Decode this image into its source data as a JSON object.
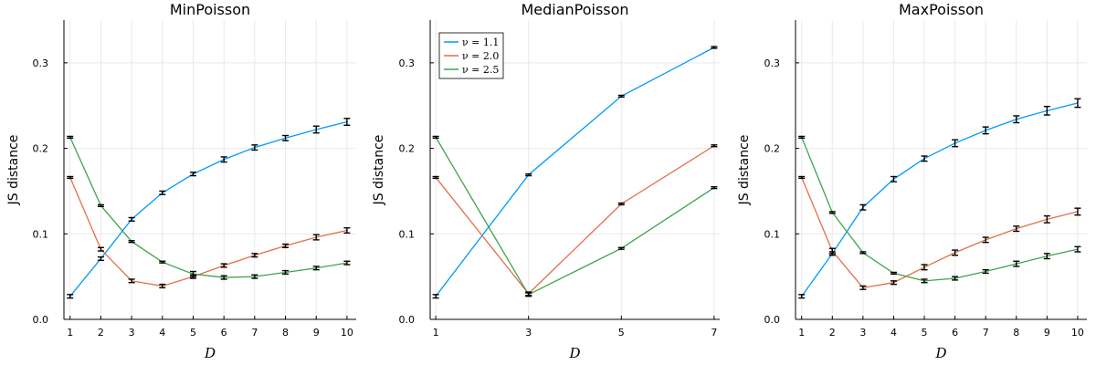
{
  "chart_data": [
    {
      "type": "line",
      "title": "MinPoisson",
      "xlabel": "D",
      "ylabel": "JS distance",
      "x": [
        1,
        2,
        3,
        4,
        5,
        6,
        7,
        8,
        9,
        10
      ],
      "xticks": [
        "1",
        "2",
        "3",
        "4",
        "5",
        "6",
        "7",
        "8",
        "9",
        "10"
      ],
      "xlim": [
        0.8,
        10.3
      ],
      "yticks": [
        "0.0",
        "0.1",
        "0.2",
        "0.3"
      ],
      "ylim": [
        0,
        0.35
      ],
      "grid": true,
      "legend": false,
      "series": [
        {
          "name": "ν = 1.1",
          "color": "#009AFA",
          "values": [
            0.027,
            0.071,
            0.117,
            0.148,
            0.17,
            0.187,
            0.201,
            0.212,
            0.222,
            0.231
          ],
          "errors": [
            0.002,
            0.002,
            0.002,
            0.002,
            0.002,
            0.003,
            0.003,
            0.003,
            0.004,
            0.004
          ]
        },
        {
          "name": "ν = 2.0",
          "color": "#E26F46",
          "values": [
            0.166,
            0.082,
            0.045,
            0.039,
            0.05,
            0.063,
            0.075,
            0.086,
            0.096,
            0.104
          ],
          "errors": [
            0.001,
            0.002,
            0.002,
            0.002,
            0.002,
            0.002,
            0.002,
            0.002,
            0.003,
            0.003
          ]
        },
        {
          "name": "ν = 2.5",
          "color": "#3DA44D",
          "values": [
            0.213,
            0.133,
            0.091,
            0.067,
            0.053,
            0.049,
            0.05,
            0.055,
            0.06,
            0.066
          ],
          "errors": [
            0.001,
            0.001,
            0.001,
            0.001,
            0.003,
            0.002,
            0.002,
            0.002,
            0.002,
            0.002
          ]
        }
      ]
    },
    {
      "type": "line",
      "title": "MedianPoisson",
      "xlabel": "D",
      "ylabel": "JS distance",
      "x": [
        1,
        3,
        5,
        7
      ],
      "xticks": [
        "1",
        "3",
        "5",
        "7"
      ],
      "xlim": [
        0.88,
        7.12
      ],
      "yticks": [
        "0.0",
        "0.1",
        "0.2",
        "0.3"
      ],
      "ylim": [
        0,
        0.35
      ],
      "grid": true,
      "legend": true,
      "legend_position": "top-left",
      "series": [
        {
          "name": "ν = 1.1",
          "color": "#009AFA",
          "values": [
            0.027,
            0.169,
            0.261,
            0.318
          ],
          "errors": [
            0.002,
            0.001,
            0.001,
            0.001
          ]
        },
        {
          "name": "ν = 2.0",
          "color": "#E26F46",
          "values": [
            0.166,
            0.03,
            0.135,
            0.203
          ],
          "errors": [
            0.001,
            0.002,
            0.001,
            0.001
          ]
        },
        {
          "name": "ν = 2.5",
          "color": "#3DA44D",
          "values": [
            0.213,
            0.029,
            0.083,
            0.154
          ],
          "errors": [
            0.001,
            0.002,
            0.001,
            0.001
          ]
        }
      ]
    },
    {
      "type": "line",
      "title": "MaxPoisson",
      "xlabel": "D",
      "ylabel": "JS distance",
      "x": [
        1,
        2,
        3,
        4,
        5,
        6,
        7,
        8,
        9,
        10
      ],
      "xticks": [
        "1",
        "2",
        "3",
        "4",
        "5",
        "6",
        "7",
        "8",
        "9",
        "10"
      ],
      "xlim": [
        0.8,
        10.3
      ],
      "yticks": [
        "0.0",
        "0.1",
        "0.2",
        "0.3"
      ],
      "ylim": [
        0,
        0.35
      ],
      "grid": true,
      "legend": false,
      "series": [
        {
          "name": "ν = 1.1",
          "color": "#009AFA",
          "values": [
            0.027,
            0.077,
            0.131,
            0.164,
            0.188,
            0.206,
            0.221,
            0.234,
            0.244,
            0.253
          ],
          "errors": [
            0.002,
            0.002,
            0.003,
            0.003,
            0.003,
            0.004,
            0.004,
            0.004,
            0.005,
            0.005
          ]
        },
        {
          "name": "ν = 2.0",
          "color": "#E26F46",
          "values": [
            0.166,
            0.08,
            0.037,
            0.043,
            0.061,
            0.078,
            0.093,
            0.106,
            0.117,
            0.126
          ],
          "errors": [
            0.001,
            0.003,
            0.002,
            0.002,
            0.003,
            0.003,
            0.003,
            0.003,
            0.004,
            0.004
          ]
        },
        {
          "name": "ν = 2.5",
          "color": "#3DA44D",
          "values": [
            0.213,
            0.125,
            0.078,
            0.054,
            0.045,
            0.048,
            0.056,
            0.065,
            0.074,
            0.082
          ],
          "errors": [
            0.001,
            0.001,
            0.001,
            0.001,
            0.002,
            0.002,
            0.002,
            0.003,
            0.003,
            0.003
          ]
        }
      ]
    }
  ]
}
